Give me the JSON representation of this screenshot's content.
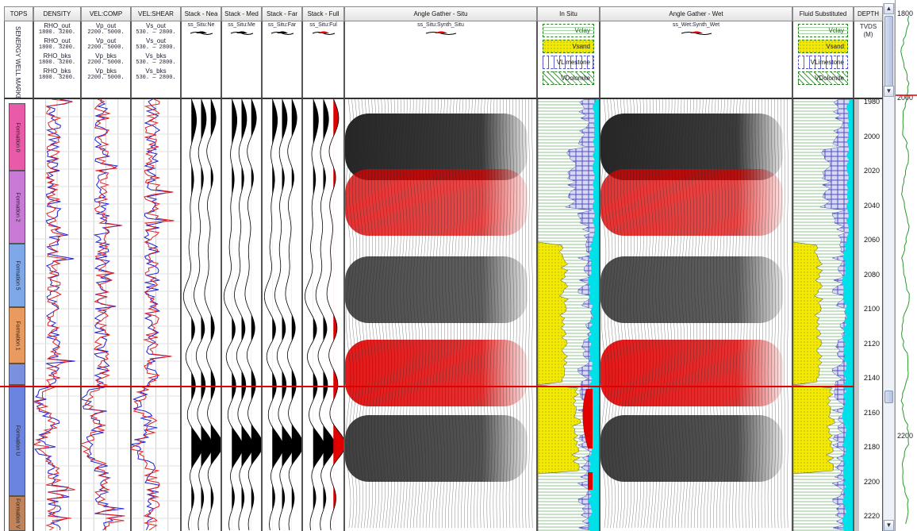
{
  "headers": {
    "tops": "TOPS",
    "density": "DENSITY",
    "vel_comp": "VEL:COMP",
    "vel_shear": "VEL:SHEAR",
    "stack_near": "Stack - Nea",
    "stack_mid": "Stack - Med",
    "stack_far": "Stack - Far",
    "stack_full": "Stack - Full",
    "angle_situ": "Angle Gather - Situ",
    "in_situ": "In Situ",
    "angle_wet": "Angle Gather - Wet",
    "fluid_sub": "Fluid Substituted",
    "depth": "DEPTH"
  },
  "tops_label": "SENERGY WELL MARKE",
  "density_curves": [
    {
      "name": "RHO_out",
      "range": "1800.  3200."
    },
    {
      "name": "RHO_out",
      "range": "1800.  3200."
    },
    {
      "name": "RHO_bks",
      "range": "1800.  3200."
    },
    {
      "name": "RHO_bks",
      "range": "1800.  3200."
    }
  ],
  "comp_curves": [
    {
      "name": "Vp_out",
      "range": "2200.  5000."
    },
    {
      "name": "Vp_out",
      "range": "2200.  5000."
    },
    {
      "name": "Vp_bks",
      "range": "2200.  5000."
    },
    {
      "name": "Vp_bks",
      "range": "2200.  5000."
    }
  ],
  "shear_curves": [
    {
      "name": "Vs_out",
      "range": "530.  — 2800."
    },
    {
      "name": "Vs_out",
      "range": "530.  — 2800."
    },
    {
      "name": "Vs_bks",
      "range": "530.  — 2800."
    },
    {
      "name": "Vs_bks",
      "range": "530.  — 2800."
    }
  ],
  "stack_subs": [
    "ss_Situ:Ne",
    "ss_Situ:Me",
    "ss_Situ:Far",
    "ss_Situ:Ful"
  ],
  "angle_situ_sub": "ss_Situ:Synth_Situ",
  "angle_wet_sub": "ss_Wet:Synth_Wet",
  "lithology": [
    "Vclay",
    "Vsand",
    "VLimestone",
    "VDolomite"
  ],
  "depth_sub": {
    "label": "TVDS",
    "unit": "(M)"
  },
  "depth_ticks": [
    "1980",
    "2000",
    "2020",
    "2040",
    "2060",
    "2080",
    "2100",
    "2120",
    "2140",
    "2160",
    "2180",
    "2200",
    "2220"
  ],
  "formations": [
    {
      "name": "Formation 0",
      "color": "#e95ba9"
    },
    {
      "name": "Formation 2",
      "color": "#c97ad6"
    },
    {
      "name": "Formation 5",
      "color": "#7ea8e8"
    },
    {
      "name": "Formation 1",
      "color": "#e99a5e"
    },
    {
      "name": "",
      "color": "#7b91e0"
    },
    {
      "name": "Formation U",
      "color": "#6a84e0"
    },
    {
      "name": "Formation V",
      "color": "#c0835a"
    }
  ],
  "overview": {
    "labels": [
      "1800",
      "2000",
      "2200"
    ]
  },
  "colors": {
    "red_marker": "#e00000",
    "sand": "#f2ea00",
    "water": "#00e0e8"
  }
}
